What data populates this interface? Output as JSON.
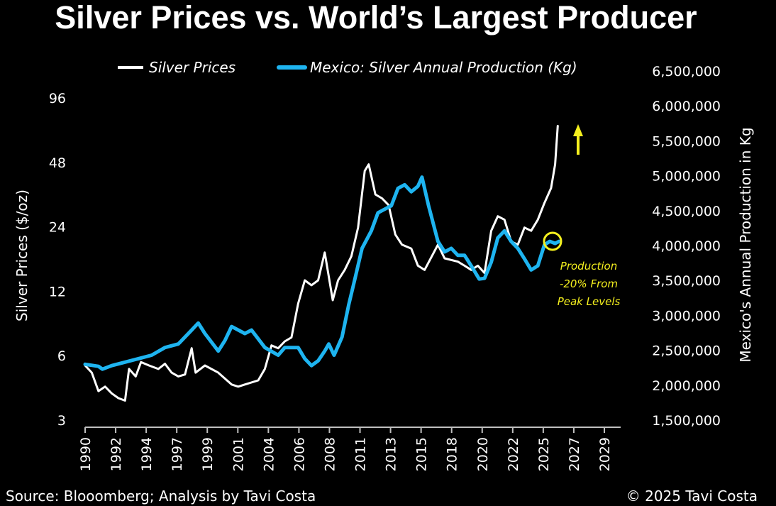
{
  "chart_data": {
    "type": "line",
    "title": "Silver Prices vs. World’s Largest Producer",
    "xlabel": "",
    "ylabel_left": "Silver Prices ($/oz)",
    "ylabel_right": "Mexico's Annual Production in Kg",
    "y_left_scale": "log2",
    "y_left_lim": [
      3,
      96
    ],
    "y_left_ticks": [
      "96",
      "48",
      "24",
      "12",
      "6",
      "3"
    ],
    "y_left_tick_values": [
      96,
      48,
      24,
      12,
      6,
      3
    ],
    "y_right_lim": [
      1500000,
      6500000
    ],
    "y_right_ticks": [
      "6,500,000",
      "6,000,000",
      "5,500,000",
      "5,000,000",
      "4,500,000",
      "4,000,000",
      "3,500,000",
      "3,000,000",
      "2,500,000",
      "2,000,000",
      "1,500,000"
    ],
    "y_right_tick_values": [
      6500000,
      6000000,
      5500000,
      5000000,
      4500000,
      4000000,
      3500000,
      3000000,
      2500000,
      2000000,
      1500000
    ],
    "x_lim": [
      1990,
      2029
    ],
    "x_ticks": [
      "1990",
      "1992",
      "1994",
      "1997",
      "1999",
      "2001",
      "2004",
      "2006",
      "2008",
      "2011",
      "2013",
      "2015",
      "2018",
      "2020",
      "2022",
      "2025",
      "2027",
      "2029"
    ],
    "grid": false,
    "legend_position": "top",
    "series": [
      {
        "name": "Silver Prices",
        "axis": "left",
        "color": "#ffffff",
        "x": [
          1990.0,
          1990.5,
          1991.0,
          1991.5,
          1992.0,
          1992.5,
          1993.0,
          1993.3,
          1993.8,
          1994.2,
          1994.8,
          1995.5,
          1996.0,
          1996.5,
          1997.0,
          1997.5,
          1998.0,
          1998.3,
          1999.0,
          2000.0,
          2001.0,
          2001.5,
          2002.0,
          2003.0,
          2003.5,
          2004.0,
          2004.5,
          2005.0,
          2005.5,
          2006.0,
          2006.5,
          2007.0,
          2007.5,
          2008.0,
          2008.6,
          2009.0,
          2009.5,
          2010.0,
          2010.5,
          2011.0,
          2011.3,
          2011.8,
          2012.3,
          2012.8,
          2013.3,
          2013.8,
          2014.5,
          2015.0,
          2015.5,
          2016.5,
          2017.0,
          2018.0,
          2018.5,
          2019.0,
          2019.5,
          2020.0,
          2020.5,
          2021.0,
          2021.5,
          2022.0,
          2022.5,
          2023.0,
          2023.5,
          2024.0,
          2024.5,
          2025.0,
          2025.3,
          2025.5
        ],
        "values": [
          5.4,
          5.0,
          4.1,
          4.3,
          4.0,
          3.8,
          3.7,
          5.2,
          4.8,
          5.6,
          5.4,
          5.2,
          5.5,
          5.0,
          4.8,
          4.9,
          6.5,
          5.0,
          5.4,
          5.0,
          4.4,
          4.3,
          4.4,
          4.6,
          5.2,
          6.7,
          6.5,
          7.0,
          7.3,
          10.5,
          13.5,
          12.8,
          13.5,
          18.2,
          10.9,
          13.5,
          15.1,
          17.5,
          23.8,
          43.8,
          47.0,
          34.0,
          32.6,
          30.3,
          22.1,
          19.8,
          19.0,
          15.8,
          15.1,
          19.8,
          17.1,
          16.5,
          15.8,
          15.1,
          15.8,
          14.6,
          23.0,
          26.9,
          25.9,
          20.5,
          19.8,
          23.8,
          23.0,
          25.9,
          31.0,
          36.4,
          47.0,
          71.0
        ]
      },
      {
        "name": "Mexico: Silver Annual Production (Kg)",
        "axis": "right",
        "color": "#1eb4f0",
        "x": [
          1990.0,
          1991.0,
          1991.3,
          1992.0,
          1993.0,
          1994.0,
          1995.0,
          1996.0,
          1997.0,
          1998.0,
          1998.5,
          1999.0,
          2000.0,
          2000.5,
          2001.0,
          2002.0,
          2002.5,
          2003.5,
          2004.5,
          2005.0,
          2006.0,
          2006.5,
          2007.0,
          2007.5,
          2008.0,
          2008.3,
          2008.7,
          2009.3,
          2009.8,
          2010.3,
          2010.8,
          2011.5,
          2012.0,
          2012.5,
          2013.0,
          2013.5,
          2014.0,
          2014.5,
          2015.0,
          2015.3,
          2015.8,
          2016.5,
          2017.0,
          2017.5,
          2018.0,
          2018.5,
          2019.0,
          2019.6,
          2020.0,
          2020.5,
          2021.0,
          2021.5,
          2022.0,
          2022.5,
          2023.0,
          2023.5,
          2024.0,
          2024.5,
          2024.9,
          2025.3,
          2025.6
        ],
        "values": [
          2300000,
          2270000,
          2230000,
          2280000,
          2330000,
          2380000,
          2430000,
          2540000,
          2590000,
          2790000,
          2890000,
          2740000,
          2490000,
          2640000,
          2840000,
          2740000,
          2790000,
          2540000,
          2430000,
          2540000,
          2540000,
          2380000,
          2280000,
          2350000,
          2490000,
          2590000,
          2430000,
          2690000,
          3150000,
          3550000,
          3960000,
          4210000,
          4470000,
          4520000,
          4570000,
          4820000,
          4870000,
          4770000,
          4850000,
          4980000,
          4570000,
          4060000,
          3910000,
          3960000,
          3860000,
          3860000,
          3710000,
          3520000,
          3530000,
          3760000,
          4110000,
          4210000,
          4060000,
          3960000,
          3810000,
          3650000,
          3710000,
          4010000,
          4060000,
          4030000,
          4060000
        ]
      }
    ],
    "annotations": [
      {
        "text_lines": [
          "Production",
          "-20% From",
          "Peak Levels"
        ],
        "color": "#f5f01e",
        "target_year": 2025.3,
        "target_series": "Mexico: Silver Annual Production (Kg)"
      },
      {
        "text": "up-arrow",
        "color": "#f5f01e"
      }
    ]
  },
  "footer": {
    "source": "Source: Bloomberg; Analysis by Tavi Costa",
    "source_display": "Source: Blooomberg; Analysis by Tavi Costa",
    "copyright": "© 2025 Tavi Costa"
  }
}
